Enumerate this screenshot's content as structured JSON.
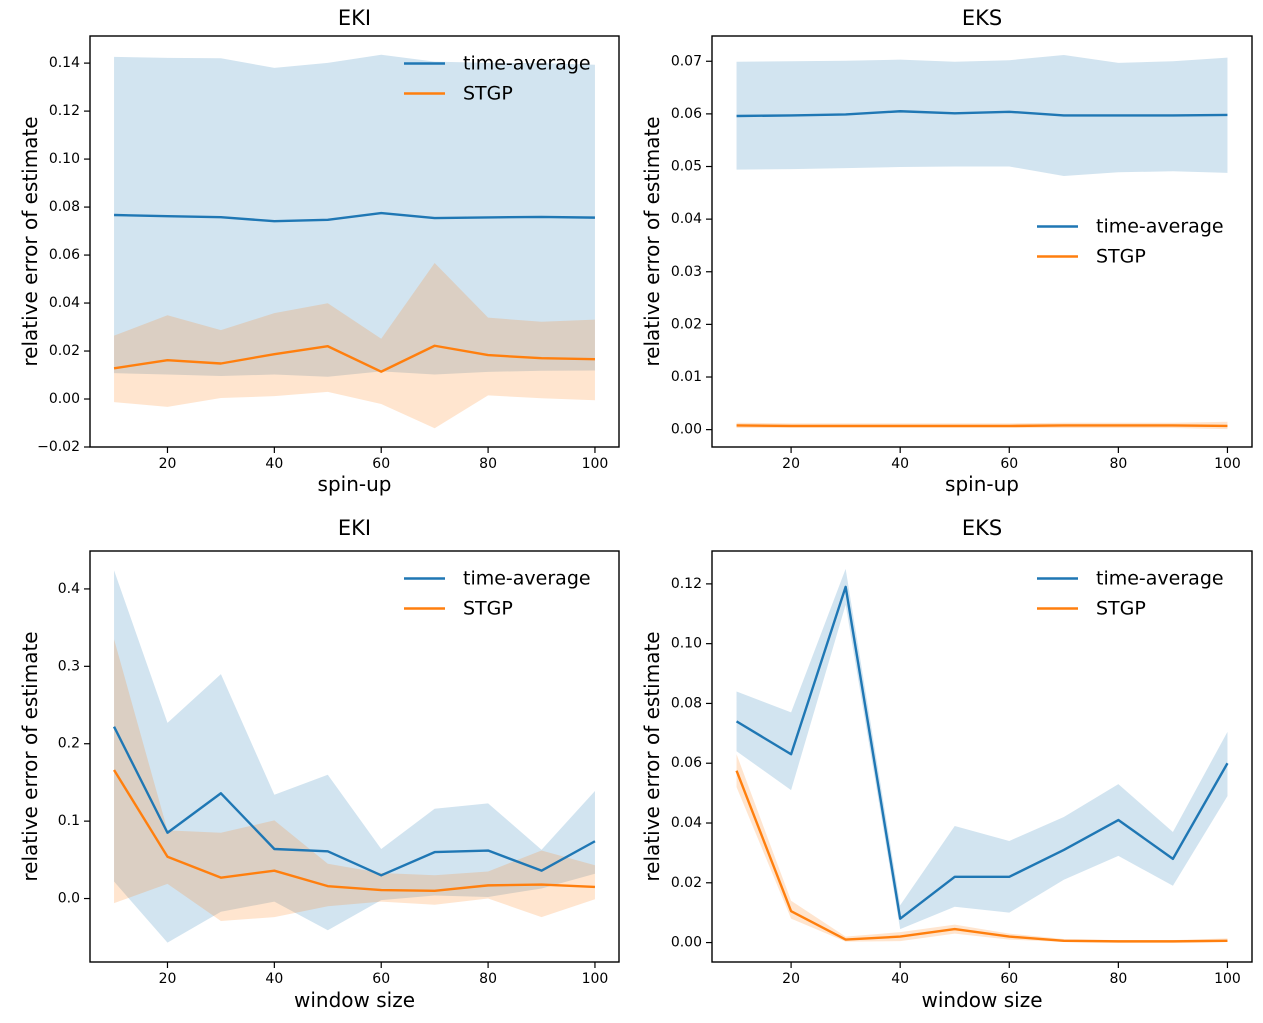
{
  "figure": {
    "background": "#ffffff",
    "series_colors": {
      "time_average": "#1f77b4",
      "stgp": "#ff7f0e"
    },
    "band_opacity": 0.2
  },
  "chart_data": [
    {
      "id": "eki-vs-spinup",
      "type": "line",
      "title": "EKI",
      "xlabel": "spin-up",
      "ylabel": "relative error of estimate",
      "grid": false,
      "x": [
        10,
        20,
        30,
        40,
        50,
        60,
        70,
        80,
        90,
        100
      ],
      "xlim": [
        5.5,
        104.5
      ],
      "ylim": [
        -0.02,
        0.1513
      ],
      "xticks": {
        "values": [
          20,
          40,
          60,
          80,
          100
        ],
        "labels": [
          "20",
          "40",
          "60",
          "80",
          "100"
        ]
      },
      "yticks": {
        "values": [
          -0.02,
          0.0,
          0.02,
          0.04,
          0.06,
          0.08,
          0.1,
          0.12,
          0.14
        ],
        "labels": [
          "−0.02",
          "0.00",
          "0.02",
          "0.04",
          "0.06",
          "0.08",
          "0.10",
          "0.12",
          "0.14"
        ]
      },
      "legend": {
        "position": "upper right",
        "entries": [
          "time-average",
          "STGP"
        ]
      },
      "series": [
        {
          "name": "time-average",
          "color": "#1f77b4",
          "values": [
            0.0767,
            0.0762,
            0.0758,
            0.0741,
            0.0747,
            0.0775,
            0.0754,
            0.0757,
            0.0759,
            0.0756
          ],
          "band_upper": [
            0.1426,
            0.1422,
            0.142,
            0.138,
            0.1401,
            0.1435,
            0.1406,
            0.1401,
            0.14,
            0.1393
          ],
          "band_lower": [
            0.0108,
            0.0102,
            0.0096,
            0.0102,
            0.0093,
            0.0115,
            0.0102,
            0.0113,
            0.0118,
            0.0119
          ]
        },
        {
          "name": "STGP",
          "color": "#ff7f0e",
          "values": [
            0.0128,
            0.0162,
            0.0148,
            0.0187,
            0.022,
            0.0114,
            0.0222,
            0.0183,
            0.017,
            0.0166
          ],
          "band_upper": [
            0.0264,
            0.0349,
            0.0287,
            0.0358,
            0.0399,
            0.0251,
            0.0567,
            0.0339,
            0.0322,
            0.0331
          ],
          "band_lower": [
            -0.0013,
            -0.0033,
            0.0004,
            0.0012,
            0.003,
            -0.0021,
            -0.0122,
            0.0015,
            0.0003,
            -0.0005
          ]
        }
      ]
    },
    {
      "id": "eks-vs-spinup",
      "type": "line",
      "title": "EKS",
      "xlabel": "spin-up",
      "ylabel": "relative error of estimate",
      "grid": false,
      "x": [
        10,
        20,
        30,
        40,
        50,
        60,
        70,
        80,
        90,
        100
      ],
      "xlim": [
        5.5,
        104.5
      ],
      "ylim": [
        -0.0033,
        0.0748
      ],
      "xticks": {
        "values": [
          20,
          40,
          60,
          80,
          100
        ],
        "labels": [
          "20",
          "40",
          "60",
          "80",
          "100"
        ]
      },
      "yticks": {
        "values": [
          0.0,
          0.01,
          0.02,
          0.03,
          0.04,
          0.05,
          0.06,
          0.07
        ],
        "labels": [
          "0.00",
          "0.01",
          "0.02",
          "0.03",
          "0.04",
          "0.05",
          "0.06",
          "0.07"
        ]
      },
      "legend": {
        "position": "center right",
        "entries": [
          "time-average",
          "STGP"
        ]
      },
      "series": [
        {
          "name": "time-average",
          "color": "#1f77b4",
          "values": [
            0.0596,
            0.0597,
            0.0599,
            0.0605,
            0.0601,
            0.0604,
            0.0597,
            0.0597,
            0.0597,
            0.0598
          ],
          "band_upper": [
            0.0699,
            0.07,
            0.0701,
            0.0703,
            0.0699,
            0.0702,
            0.0712,
            0.0697,
            0.07,
            0.0707
          ],
          "band_lower": [
            0.0494,
            0.0495,
            0.0497,
            0.0499,
            0.05,
            0.05,
            0.0482,
            0.0489,
            0.0491,
            0.0488
          ]
        },
        {
          "name": "STGP",
          "color": "#ff7f0e",
          "values": [
            0.0008,
            0.0007,
            0.0007,
            0.0007,
            0.0007,
            0.0007,
            0.0008,
            0.0008,
            0.0008,
            0.0007
          ],
          "band_upper": [
            0.0013,
            0.0012,
            0.0012,
            0.0012,
            0.0012,
            0.0012,
            0.0013,
            0.0013,
            0.0013,
            0.0015
          ],
          "band_lower": [
            0.0003,
            0.0003,
            0.0003,
            0.0003,
            0.0003,
            0.0003,
            0.0003,
            0.0003,
            0.0003,
            0.0001
          ]
        }
      ]
    },
    {
      "id": "eki-vs-window-size",
      "type": "line",
      "title": "EKI",
      "xlabel": "window size",
      "ylabel": "relative error of estimate",
      "grid": false,
      "x": [
        10,
        20,
        30,
        40,
        50,
        60,
        70,
        80,
        90,
        100
      ],
      "xlim": [
        5.5,
        104.5
      ],
      "ylim": [
        -0.082,
        0.449
      ],
      "xticks": {
        "values": [
          20,
          40,
          60,
          80,
          100
        ],
        "labels": [
          "20",
          "40",
          "60",
          "80",
          "100"
        ]
      },
      "yticks": {
        "values": [
          0.0,
          0.1,
          0.2,
          0.3,
          0.4
        ],
        "labels": [
          "0.0",
          "0.1",
          "0.2",
          "0.3",
          "0.4"
        ]
      },
      "legend": {
        "position": "upper right",
        "entries": [
          "time-average",
          "STGP"
        ]
      },
      "series": [
        {
          "name": "time-average",
          "color": "#1f77b4",
          "values": [
            0.222,
            0.085,
            0.136,
            0.064,
            0.061,
            0.03,
            0.06,
            0.062,
            0.036,
            0.074
          ],
          "band_upper": [
            0.424,
            0.227,
            0.29,
            0.134,
            0.16,
            0.064,
            0.116,
            0.123,
            0.063,
            0.139
          ],
          "band_lower": [
            0.022,
            -0.057,
            -0.017,
            -0.004,
            -0.041,
            -0.002,
            0.004,
            0.002,
            0.013,
            0.032
          ]
        },
        {
          "name": "STGP",
          "color": "#ff7f0e",
          "values": [
            0.166,
            0.054,
            0.027,
            0.036,
            0.016,
            0.011,
            0.01,
            0.017,
            0.018,
            0.015
          ],
          "band_upper": [
            0.335,
            0.088,
            0.085,
            0.101,
            0.045,
            0.033,
            0.03,
            0.035,
            0.062,
            0.043
          ],
          "band_lower": [
            -0.006,
            0.019,
            -0.029,
            -0.024,
            -0.01,
            -0.004,
            -0.008,
            0.0,
            -0.024,
            -0.001
          ]
        }
      ]
    },
    {
      "id": "eks-vs-window-size",
      "type": "line",
      "title": "EKS",
      "xlabel": "window size",
      "ylabel": "relative error of estimate",
      "grid": false,
      "x": [
        10,
        20,
        30,
        40,
        50,
        60,
        70,
        80,
        90,
        100
      ],
      "xlim": [
        5.5,
        104.5
      ],
      "ylim": [
        -0.0065,
        0.131
      ],
      "xticks": {
        "values": [
          20,
          40,
          60,
          80,
          100
        ],
        "labels": [
          "20",
          "40",
          "60",
          "80",
          "100"
        ]
      },
      "yticks": {
        "values": [
          0.0,
          0.02,
          0.04,
          0.06,
          0.08,
          0.1,
          0.12
        ],
        "labels": [
          "0.00",
          "0.02",
          "0.04",
          "0.06",
          "0.08",
          "0.10",
          "0.12"
        ]
      },
      "legend": {
        "position": "upper right",
        "entries": [
          "time-average",
          "STGP"
        ]
      },
      "series": [
        {
          "name": "time-average",
          "color": "#1f77b4",
          "values": [
            0.074,
            0.063,
            0.119,
            0.008,
            0.022,
            0.022,
            0.031,
            0.041,
            0.028,
            0.06
          ],
          "band_upper": [
            0.084,
            0.077,
            0.125,
            0.0125,
            0.039,
            0.034,
            0.042,
            0.053,
            0.037,
            0.0705
          ],
          "band_lower": [
            0.064,
            0.051,
            0.113,
            0.0045,
            0.012,
            0.01,
            0.021,
            0.029,
            0.019,
            0.049
          ]
        },
        {
          "name": "STGP",
          "color": "#ff7f0e",
          "values": [
            0.0575,
            0.0105,
            0.001,
            0.002,
            0.0045,
            0.002,
            0.0006,
            0.0004,
            0.0004,
            0.0006
          ],
          "band_upper": [
            0.063,
            0.014,
            0.002,
            0.0035,
            0.006,
            0.003,
            0.0012,
            0.0008,
            0.0008,
            0.0014
          ],
          "band_lower": [
            0.052,
            0.008,
            0.0003,
            0.0005,
            0.003,
            0.001,
            0.0002,
            0.0001,
            0.0001,
            0.0002
          ]
        }
      ]
    }
  ]
}
